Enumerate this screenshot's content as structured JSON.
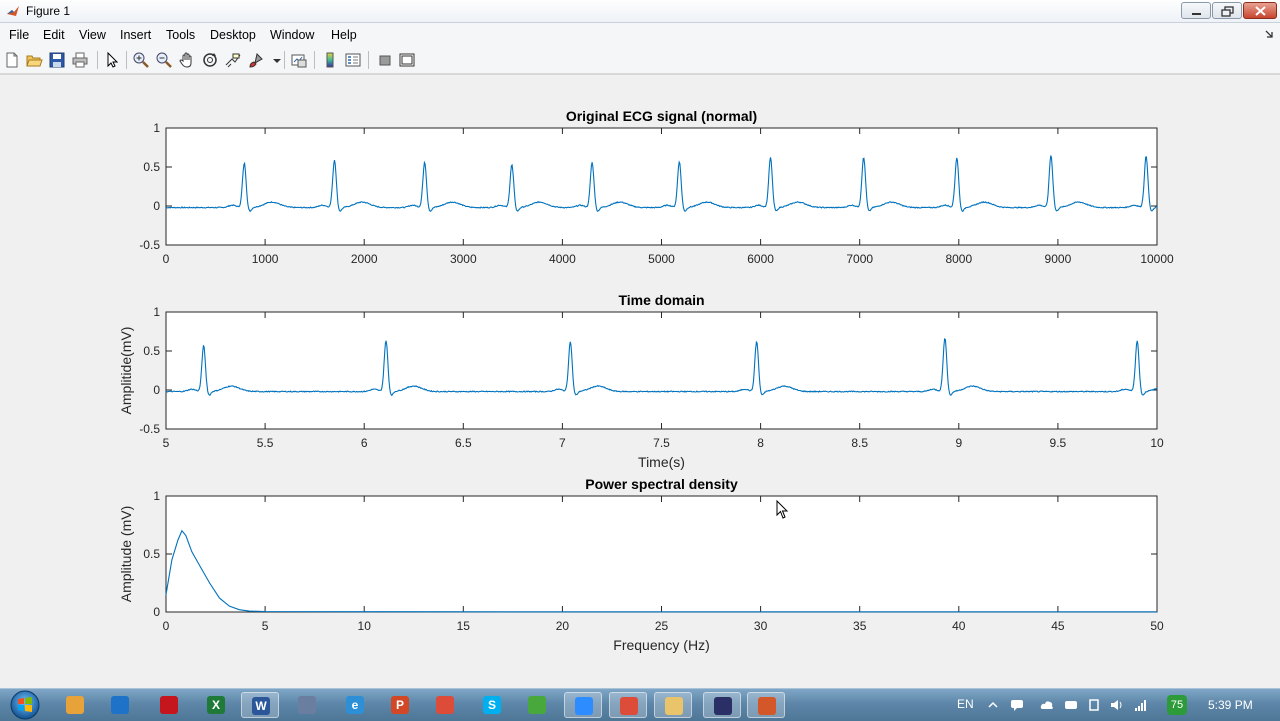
{
  "window": {
    "title": "Figure 1"
  },
  "menu": [
    "File",
    "Edit",
    "View",
    "Insert",
    "Tools",
    "Desktop",
    "Window",
    "Help"
  ],
  "toolbar": {
    "icons": [
      "new-figure-icon",
      "open-file-icon",
      "save-icon",
      "print-icon",
      "pointer-icon",
      "zoom-in-icon",
      "zoom-out-icon",
      "pan-icon",
      "rotate-icon",
      "data-cursor-icon",
      "brush-icon",
      "link-plot-icon",
      "colorbar-icon",
      "legend-icon",
      "hide-plot-tools-icon",
      "show-plot-tools-icon"
    ]
  },
  "chart_data": [
    {
      "type": "line",
      "title": "Original ECG signal (normal)",
      "xlabel": "",
      "ylabel": "",
      "xlim": [
        0,
        10000
      ],
      "ylim": [
        -0.5,
        1
      ],
      "xticks": [
        "0",
        "1000",
        "2000",
        "3000",
        "4000",
        "5000",
        "6000",
        "7000",
        "8000",
        "9000",
        "10000"
      ],
      "yticks": [
        "-0.5",
        "0",
        "0.5",
        "1"
      ],
      "baseline": -0.02,
      "r_peaks": [
        {
          "x": 790,
          "y": 0.55
        },
        {
          "x": 1700,
          "y": 0.59
        },
        {
          "x": 2610,
          "y": 0.56
        },
        {
          "x": 3490,
          "y": 0.53
        },
        {
          "x": 4300,
          "y": 0.56
        },
        {
          "x": 5180,
          "y": 0.57
        },
        {
          "x": 6100,
          "y": 0.62
        },
        {
          "x": 7040,
          "y": 0.62
        },
        {
          "x": 7980,
          "y": 0.62
        },
        {
          "x": 8930,
          "y": 0.65
        },
        {
          "x": 9890,
          "y": 0.64
        }
      ],
      "color": "#0072bd"
    },
    {
      "type": "line",
      "title": "Time domain",
      "xlabel": "Time(s)",
      "ylabel": "Amplitide(mV)",
      "xlim": [
        5,
        10
      ],
      "ylim": [
        -0.5,
        1
      ],
      "xticks": [
        "5",
        "5.5",
        "6",
        "6.5",
        "7",
        "7.5",
        "8",
        "8.5",
        "9",
        "9.5",
        "10"
      ],
      "yticks": [
        "-0.5",
        "0",
        "0.5",
        "1"
      ],
      "baseline": -0.02,
      "r_peaks": [
        {
          "x": 5.19,
          "y": 0.57
        },
        {
          "x": 6.11,
          "y": 0.63
        },
        {
          "x": 7.04,
          "y": 0.62
        },
        {
          "x": 7.98,
          "y": 0.62
        },
        {
          "x": 8.93,
          "y": 0.66
        },
        {
          "x": 9.9,
          "y": 0.63
        }
      ],
      "color": "#0072bd"
    },
    {
      "type": "line",
      "title": "Power spectral density",
      "xlabel": "Frequency (Hz)",
      "ylabel": "Amplitude (mV)",
      "xlim": [
        0,
        50
      ],
      "ylim": [
        0,
        1
      ],
      "xticks": [
        "0",
        "5",
        "10",
        "15",
        "20",
        "25",
        "30",
        "35",
        "40",
        "45",
        "50"
      ],
      "yticks": [
        "0",
        "0.5",
        "1"
      ],
      "x": [
        0,
        0.3,
        0.6,
        0.8,
        1.0,
        1.3,
        1.7,
        2.2,
        2.7,
        3.2,
        3.7,
        4.2,
        5,
        10,
        20,
        30,
        40,
        50
      ],
      "y": [
        0.15,
        0.45,
        0.62,
        0.7,
        0.66,
        0.52,
        0.4,
        0.25,
        0.12,
        0.05,
        0.02,
        0.008,
        0.004,
        0.003,
        0.002,
        0.002,
        0.002,
        0.002
      ],
      "color": "#0072bd"
    }
  ],
  "taskbar": {
    "apps": [
      "file-manager-icon",
      "ie-icon",
      "acrobat-icon",
      "excel-icon",
      "word-icon",
      "media-icon",
      "browser-icon",
      "powerpoint-icon",
      "chrome-icon",
      "skype-icon",
      "green-app-icon",
      "zoom-icon",
      "chrome-icon",
      "folder-icon",
      "matlab-editor-icon",
      "matlab-icon"
    ],
    "lang": "EN",
    "badge": "75",
    "time": "5:39 PM"
  }
}
